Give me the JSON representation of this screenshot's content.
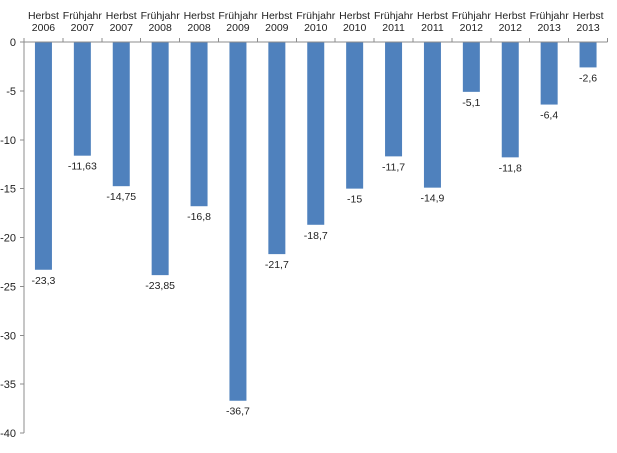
{
  "chart_data": {
    "type": "bar",
    "title": "",
    "xlabel": "",
    "ylabel": "",
    "ylim": [
      -40,
      0
    ],
    "yticks": [
      "0",
      "-5",
      "-10",
      "-15",
      "-20",
      "-25",
      "-30",
      "-35",
      "-40"
    ],
    "ytick_values": [
      0,
      -5,
      -10,
      -15,
      -20,
      -25,
      -30,
      -35,
      -40
    ],
    "grid": false,
    "legend": "none",
    "bar_color": "#4f81bd",
    "categories": [
      [
        "Herbst",
        "2006"
      ],
      [
        "Frühjahr",
        "2007"
      ],
      [
        "Herbst",
        "2007"
      ],
      [
        "Frühjahr",
        "2008"
      ],
      [
        "Herbst",
        "2008"
      ],
      [
        "Frühjahr",
        "2009"
      ],
      [
        "Herbst",
        "2009"
      ],
      [
        "Frühjahr",
        "2010"
      ],
      [
        "Herbst",
        "2010"
      ],
      [
        "Frühjahr",
        "2011"
      ],
      [
        "Herbst",
        "2011"
      ],
      [
        "Frühjahr",
        "2012"
      ],
      [
        "Herbst",
        "2012"
      ],
      [
        "Frühjahr",
        "2013"
      ],
      [
        "Herbst",
        "2013"
      ]
    ],
    "values": [
      -23.3,
      -11.63,
      -14.75,
      -23.85,
      -16.8,
      -36.7,
      -21.7,
      -18.7,
      -15,
      -11.7,
      -14.9,
      -5.1,
      -11.8,
      -6.4,
      -2.6
    ],
    "data_labels": [
      "-23,3",
      "-11,63",
      "-14,75",
      "-23,85",
      "-16,8",
      "-36,7",
      "-21,7",
      "-18,7",
      "-15",
      "-11,7",
      "-14,9",
      "-5,1",
      "-11,8",
      "-6,4",
      "-2,6"
    ]
  }
}
